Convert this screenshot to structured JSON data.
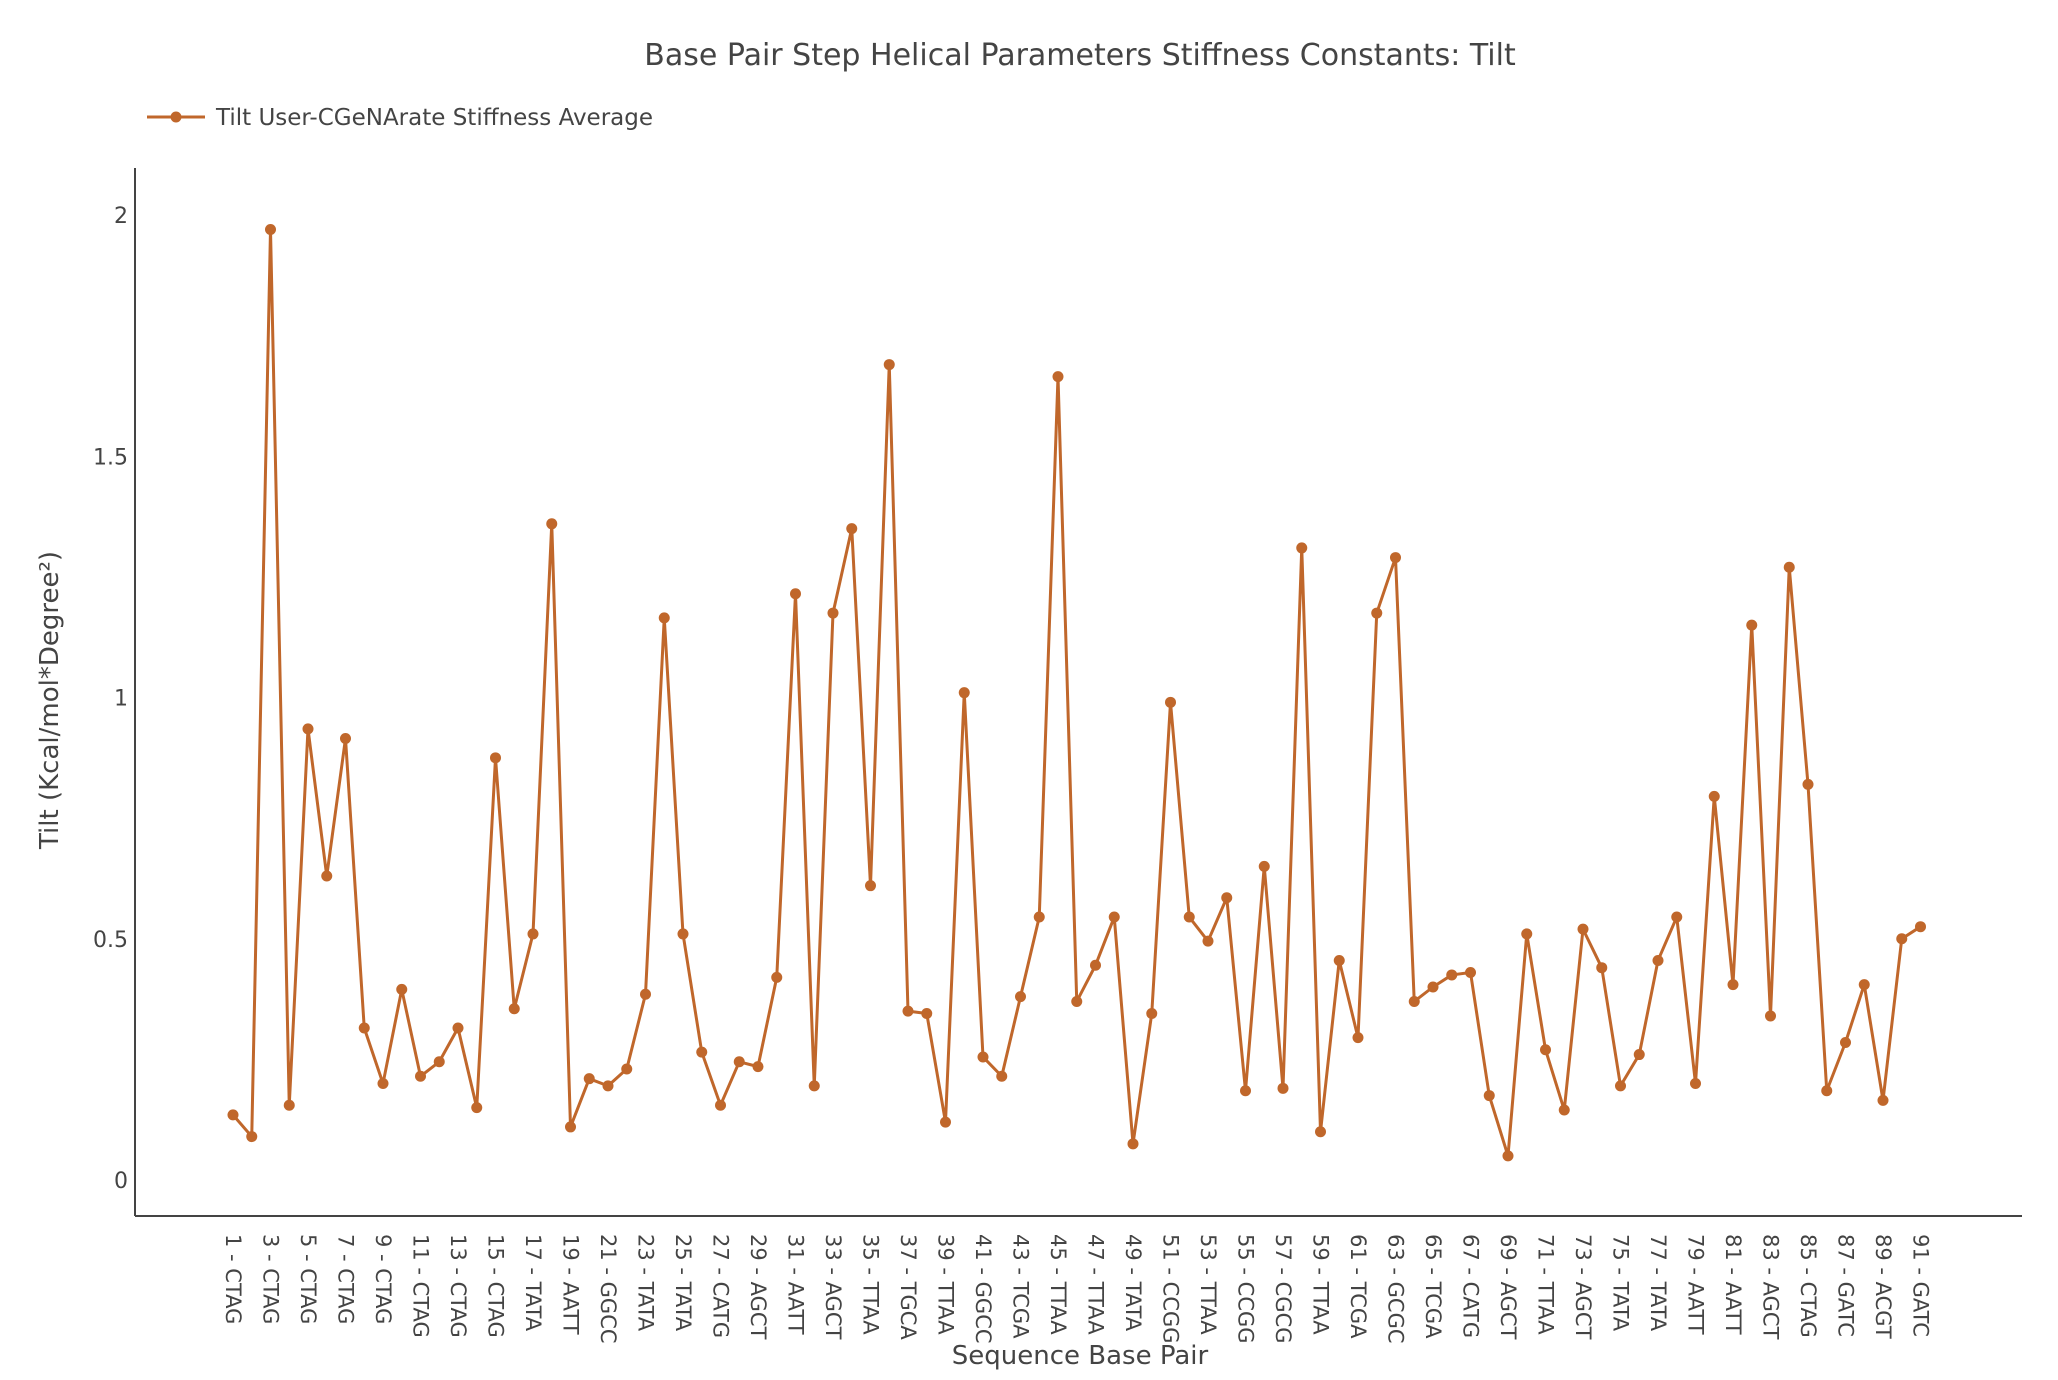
{
  "chart_data": {
    "type": "line",
    "title": "Base Pair Step Helical Parameters Stiffness Constants: Tilt",
    "xlabel": "Sequence Base Pair",
    "ylabel": "Tilt (Kcal/mol*Degree²)",
    "ylim": [
      0,
      2.1
    ],
    "y_ticks": [
      "0",
      "0.5",
      "1",
      "1.5",
      "2"
    ],
    "grid": false,
    "legend": "top-left",
    "color": "#c0672b",
    "series": [
      {
        "name": "Tilt User-CGeNArate Stiffness Average",
        "values": [
          0.135,
          0.09,
          1.97,
          0.155,
          0.935,
          0.63,
          0.915,
          0.315,
          0.2,
          0.395,
          0.215,
          0.245,
          0.315,
          0.15,
          0.875,
          0.355,
          0.51,
          1.36,
          0.11,
          0.21,
          0.195,
          0.23,
          0.385,
          1.165,
          0.51,
          0.265,
          0.155,
          0.245,
          0.235,
          0.42,
          1.215,
          0.195,
          1.175,
          1.35,
          0.61,
          1.69,
          0.35,
          0.345,
          0.12,
          1.01,
          0.255,
          0.215,
          0.38,
          0.545,
          1.665,
          0.37,
          0.445,
          0.545,
          0.075,
          0.345,
          0.99,
          0.545,
          0.495,
          0.585,
          0.185,
          0.65,
          0.19,
          1.31,
          0.1,
          0.455,
          0.295,
          1.175,
          1.29,
          0.37,
          0.4,
          0.425,
          0.43,
          0.175,
          0.05,
          0.51,
          0.27,
          0.145,
          0.52,
          0.44,
          0.195,
          0.26,
          0.455,
          0.545,
          0.2,
          0.795,
          0.405,
          1.15,
          0.34,
          1.27,
          0.82,
          0.185,
          0.285,
          0.405,
          0.165,
          0.5,
          0.525
        ]
      }
    ],
    "x_tick_labels": [
      "1 - CTAG",
      "3 - CTAG",
      "5 - CTAG",
      "7 - CTAG",
      "9 - CTAG",
      "11 - CTAG",
      "13 - CTAG",
      "15 - CTAG",
      "17 - TATA",
      "19 - AATT",
      "21 - GGCC",
      "23 - TATA",
      "25 - TATA",
      "27 - CATG",
      "29 - AGCT",
      "31 - AATT",
      "33 - AGCT",
      "35 - TTAA",
      "37 - TGCA",
      "39 - TTAA",
      "41 - GGCC",
      "43 - TCGA",
      "45 - TTAA",
      "47 - TTAA",
      "49 - TATA",
      "51 - CCGG",
      "53 - TTAA",
      "55 - CCGG",
      "57 - CGCG",
      "59 - TTAA",
      "61 - TCGA",
      "63 - GCGC",
      "65 - TCGA",
      "67 - CATG",
      "69 - AGCT",
      "71 - TTAA",
      "73 - AGCT",
      "75 - TATA",
      "77 - TATA",
      "79 - AATT",
      "81 - AATT",
      "83 - AGCT",
      "85 - CTAG",
      "87 - GATC",
      "89 - ACGT",
      "91 - GATC"
    ]
  }
}
